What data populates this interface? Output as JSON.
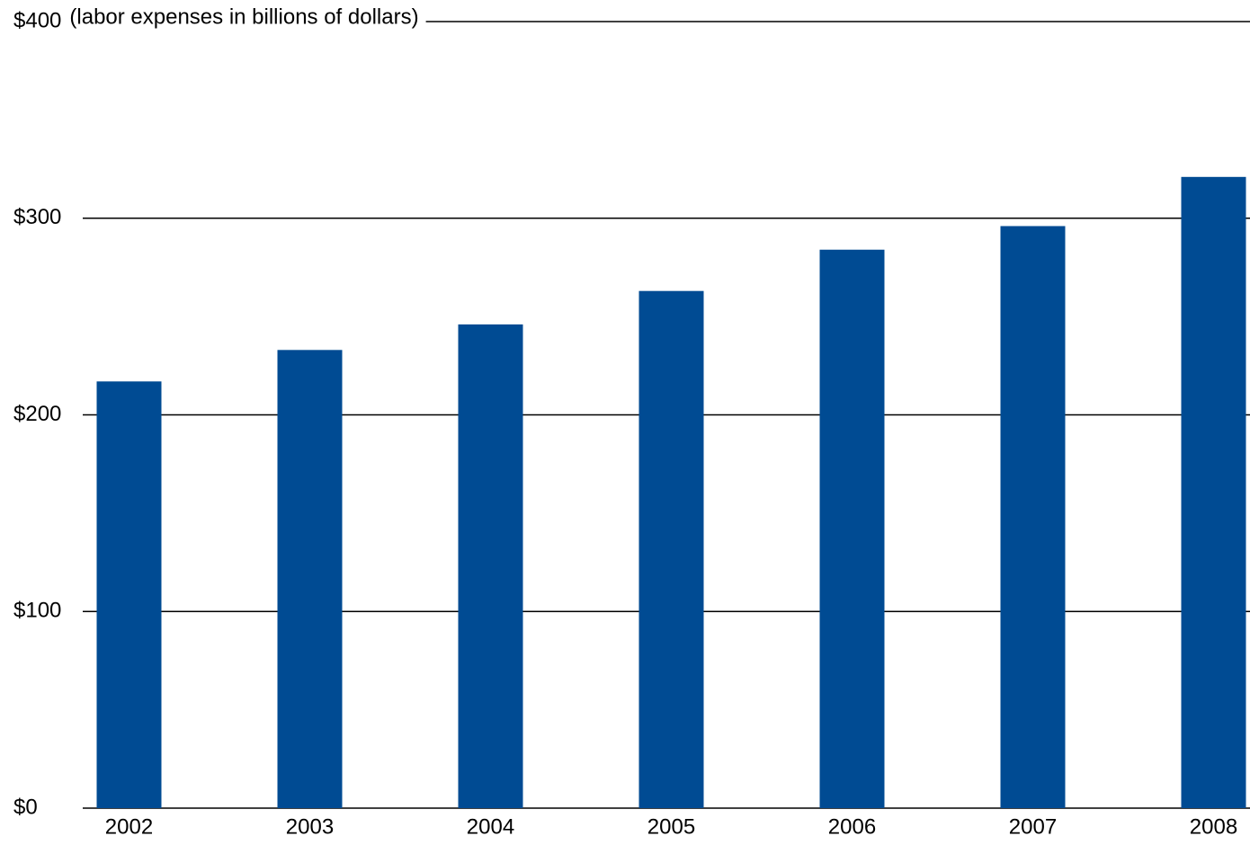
{
  "chart_data": {
    "type": "bar",
    "ylabel": "(labor expenses in billions of dollars)",
    "categories": [
      "2002",
      "2003",
      "2004",
      "2005",
      "2006",
      "2007",
      "2008"
    ],
    "values": [
      217,
      233,
      246,
      263,
      284,
      296,
      321
    ],
    "ylim": [
      0,
      400
    ],
    "yticks": [
      {
        "value": 0,
        "label": "$0"
      },
      {
        "value": 100,
        "label": "$100"
      },
      {
        "value": 200,
        "label": "$200"
      },
      {
        "value": 300,
        "label": "$300"
      },
      {
        "value": 400,
        "label": "$400"
      }
    ],
    "grid": true,
    "legend": "none",
    "colors": {
      "bar": "#004b93",
      "grid": "#000000",
      "text": "#000000"
    }
  }
}
